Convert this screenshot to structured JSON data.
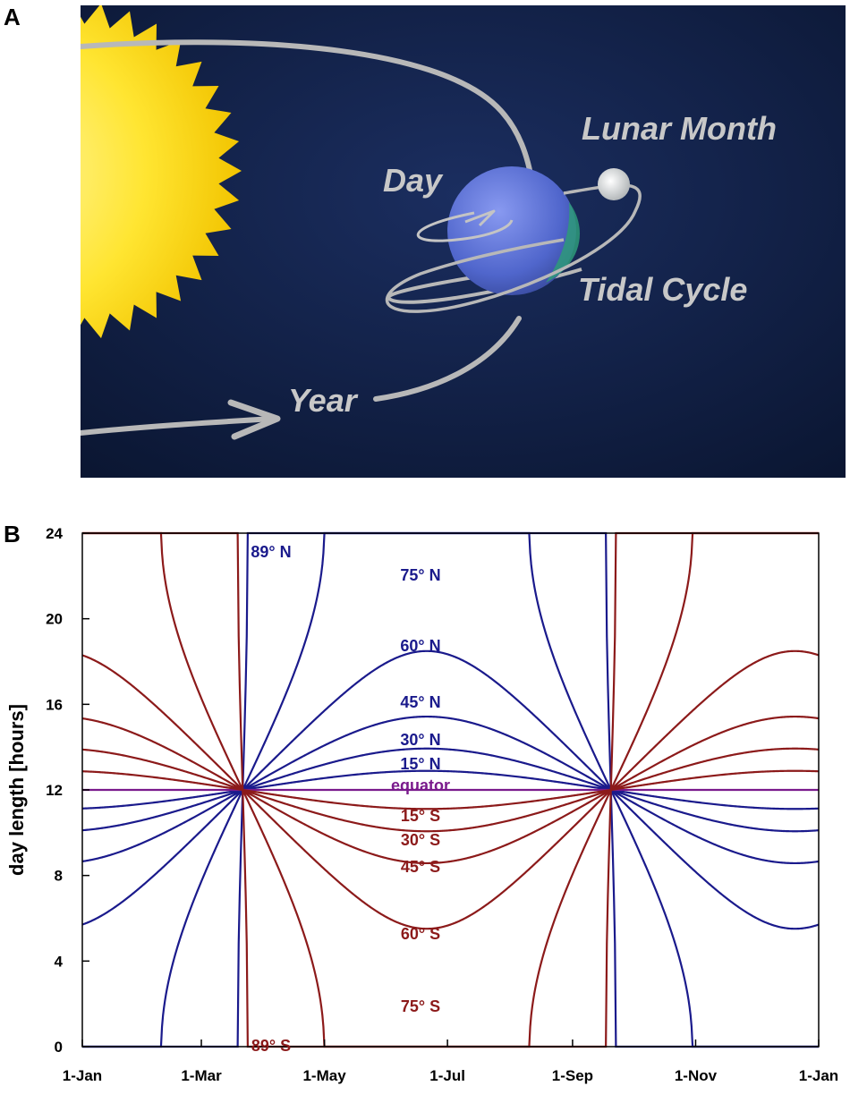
{
  "panel_a": {
    "letter": "A",
    "labels": {
      "lunar_month": "Lunar Month",
      "day": "Day",
      "tidal_cycle": "Tidal Cycle",
      "year": "Year"
    },
    "colors": {
      "space": "#0c1a3c",
      "sun": "#ffe22e",
      "earth": "#5a72d8",
      "ocean": "#2e9a7a",
      "moon": "#e8ece8",
      "orbit": "#b8b8b8"
    }
  },
  "panel_b": {
    "letter": "B"
  },
  "chart_data": {
    "type": "line",
    "title": "",
    "xlabel": "",
    "ylabel": "day length [hours]",
    "xlim": [
      "1-Jan",
      "1-Jan"
    ],
    "ylim": [
      0,
      24
    ],
    "x_ticks": [
      "1-Jan",
      "1-Mar",
      "1-May",
      "1-Jul",
      "1-Sep",
      "1-Nov",
      "1-Jan"
    ],
    "y_ticks": [
      "0",
      "4",
      "8",
      "12",
      "16",
      "20",
      "24"
    ],
    "grid": false,
    "colors": {
      "north": "#1a1a8c",
      "south": "#8c1a1a",
      "equator": "#7a1a8c"
    },
    "series": [
      {
        "name": "89° N",
        "latitude": 89,
        "hemisphere": "N"
      },
      {
        "name": "75° N",
        "latitude": 75,
        "hemisphere": "N"
      },
      {
        "name": "60° N",
        "latitude": 60,
        "hemisphere": "N"
      },
      {
        "name": "45° N",
        "latitude": 45,
        "hemisphere": "N"
      },
      {
        "name": "30° N",
        "latitude": 30,
        "hemisphere": "N"
      },
      {
        "name": "15° N",
        "latitude": 15,
        "hemisphere": "N"
      },
      {
        "name": "equator",
        "latitude": 0,
        "hemisphere": "E"
      },
      {
        "name": "15° S",
        "latitude": -15,
        "hemisphere": "S"
      },
      {
        "name": "30° S",
        "latitude": -30,
        "hemisphere": "S"
      },
      {
        "name": "45° S",
        "latitude": -45,
        "hemisphere": "S"
      },
      {
        "name": "60° S",
        "latitude": -60,
        "hemisphere": "S"
      },
      {
        "name": "75° S",
        "latitude": -75,
        "hemisphere": "S"
      },
      {
        "name": "89° S",
        "latitude": -89,
        "hemisphere": "S"
      }
    ],
    "annotations": [
      {
        "text": "89°  N",
        "series": "89° N"
      },
      {
        "text": "75°  N",
        "series": "75° N"
      },
      {
        "text": "60°  N",
        "series": "60° N"
      },
      {
        "text": "45°  N",
        "series": "45° N"
      },
      {
        "text": "30°  N",
        "series": "30° N"
      },
      {
        "text": "15°  N",
        "series": "15° N"
      },
      {
        "text": "equator",
        "series": "equator"
      },
      {
        "text": "15°  S",
        "series": "15° S"
      },
      {
        "text": "30°  S",
        "series": "30° S"
      },
      {
        "text": "45°  S",
        "series": "45° S"
      },
      {
        "text": "60°  S",
        "series": "60° S"
      },
      {
        "text": "75°  S",
        "series": "75° S"
      },
      {
        "text": "89°  S",
        "series": "89° S"
      }
    ]
  }
}
